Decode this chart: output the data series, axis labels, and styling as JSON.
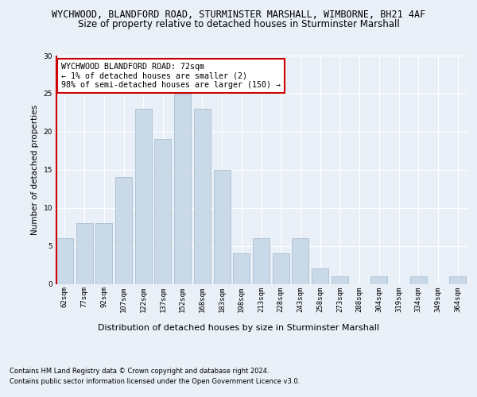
{
  "title1": "WYCHWOOD, BLANDFORD ROAD, STURMINSTER MARSHALL, WIMBORNE, BH21 4AF",
  "title2": "Size of property relative to detached houses in Sturminster Marshall",
  "xlabel": "Distribution of detached houses by size in Sturminster Marshall",
  "ylabel": "Number of detached properties",
  "bar_labels": [
    "62sqm",
    "77sqm",
    "92sqm",
    "107sqm",
    "122sqm",
    "137sqm",
    "152sqm",
    "168sqm",
    "183sqm",
    "198sqm",
    "213sqm",
    "228sqm",
    "243sqm",
    "258sqm",
    "273sqm",
    "288sqm",
    "304sqm",
    "319sqm",
    "334sqm",
    "349sqm",
    "364sqm"
  ],
  "bar_values": [
    6,
    8,
    8,
    14,
    23,
    19,
    25,
    23,
    15,
    4,
    6,
    4,
    6,
    2,
    1,
    0,
    1,
    0,
    1,
    0,
    1
  ],
  "bar_color": "#c9d9e8",
  "bar_edge_color": "#a0b8cc",
  "highlight_color": "#cc0000",
  "annotation_lines": [
    "WYCHWOOD BLANDFORD ROAD: 72sqm",
    "← 1% of detached houses are smaller (2)",
    "98% of semi-detached houses are larger (150) →"
  ],
  "annotation_box_color": "#ffffff",
  "annotation_box_edge": "#cc0000",
  "ylim": [
    0,
    30
  ],
  "yticks": [
    0,
    5,
    10,
    15,
    20,
    25,
    30
  ],
  "bg_color": "#eaf0f8",
  "plot_bg_color": "#eaf0f8",
  "footer1": "Contains HM Land Registry data © Crown copyright and database right 2024.",
  "footer2": "Contains public sector information licensed under the Open Government Licence v3.0.",
  "title1_fontsize": 8.5,
  "title2_fontsize": 8.5,
  "xlabel_fontsize": 8,
  "ylabel_fontsize": 7.5,
  "tick_fontsize": 6.5,
  "annotation_fontsize": 7.2,
  "footer_fontsize": 6.0
}
